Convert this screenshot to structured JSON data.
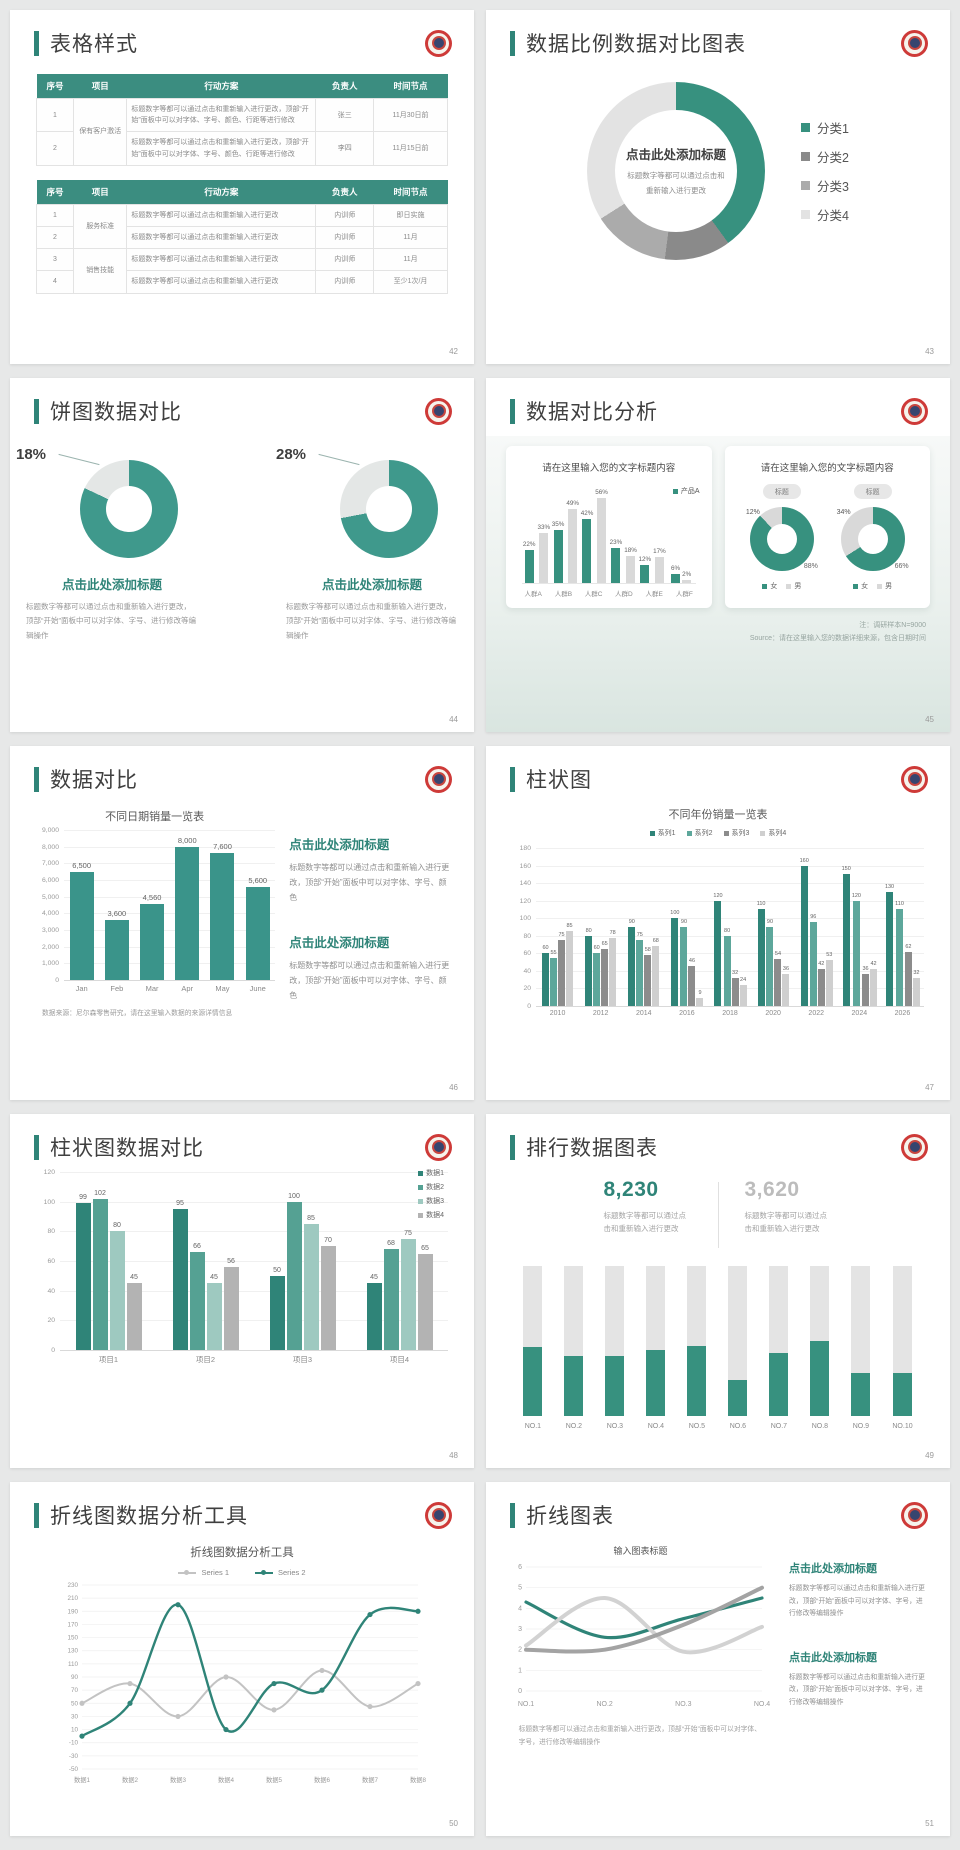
{
  "slides": [
    {
      "title": "表格样式",
      "page": "42",
      "tables": [
        {
          "headers": [
            "序号",
            "项目",
            "行动方案",
            "负责人",
            "时间节点"
          ],
          "col_widths": [
            "9%",
            "13%",
            "46%",
            "14%",
            "18%"
          ],
          "rows": [
            [
              {
                "t": "1"
              },
              {
                "t": "保有客户激活",
                "rs": 2
              },
              {
                "t": "标题数字等都可以通过点击和重新输入进行更改，顶部“开始”面板中可以对字体、字号、颜色、行距等进行修改"
              },
              {
                "t": "张三"
              },
              {
                "t": "11月30日前"
              }
            ],
            [
              {
                "t": "2"
              },
              null,
              {
                "t": "标题数字等都可以通过点击和重新输入进行更改，顶部“开始”面板中可以对字体、字号、颜色、行距等进行修改"
              },
              {
                "t": "李四"
              },
              {
                "t": "11月15日前"
              }
            ]
          ]
        },
        {
          "headers": [
            "序号",
            "项目",
            "行动方案",
            "负责人",
            "时间节点"
          ],
          "col_widths": [
            "9%",
            "13%",
            "46%",
            "14%",
            "18%"
          ],
          "rows": [
            [
              {
                "t": "1"
              },
              {
                "t": "服务标准",
                "rs": 2
              },
              {
                "t": "标题数字等都可以通过点击和重新输入进行更改"
              },
              {
                "t": "内训师"
              },
              {
                "t": "即日实施"
              }
            ],
            [
              {
                "t": "2"
              },
              null,
              {
                "t": "标题数字等都可以通过点击和重新输入进行更改"
              },
              {
                "t": "内训师"
              },
              {
                "t": "11月"
              }
            ],
            [
              {
                "t": "3"
              },
              {
                "t": "销售技能",
                "rs": 2
              },
              {
                "t": "标题数字等都可以通过点击和重新输入进行更改"
              },
              {
                "t": "内训师"
              },
              {
                "t": "11月"
              }
            ],
            [
              {
                "t": "4"
              },
              null,
              {
                "t": "标题数字等都可以通过点击和重新输入进行更改"
              },
              {
                "t": "内训师"
              },
              {
                "t": "至少1次/月"
              }
            ]
          ]
        }
      ]
    },
    {
      "title": "数据比例数据对比图表",
      "page": "43",
      "chart_data": {
        "type": "pie",
        "center_title": "点击此处添加标题",
        "center_text": "标题数字等都可以通过点击和重新输入进行更改",
        "segments": [
          {
            "label": "分类1",
            "value": 40,
            "color": "#37917f"
          },
          {
            "label": "分类2",
            "value": 12,
            "color": "#8a8a8a"
          },
          {
            "label": "分类3",
            "value": 14,
            "color": "#ababab"
          },
          {
            "label": "分类4",
            "value": 34,
            "color": "#e3e3e3"
          }
        ]
      }
    },
    {
      "title": "饼图数据对比",
      "page": "44",
      "main_color": "#3f998c",
      "rest_color": "#e4e7e6",
      "donuts": [
        {
          "percent_label": "18%",
          "value": 18,
          "title": "点击此处添加标题",
          "text": "标题数字等都可以通过点击和重新输入进行更改，顶部“开始”面板中可以对字体、字号、进行修改等编辑操作"
        },
        {
          "percent_label": "28%",
          "value": 28,
          "title": "点击此处添加标题",
          "text": "标题数字等都可以通过点击和重新输入进行更改，顶部“开始”面板中可以对字体、字号、进行修改等编辑操作"
        }
      ]
    },
    {
      "title": "数据对比分析",
      "page": "45",
      "note1": "注：调研样本N=9000",
      "note2": "Source：请在这里输入您的数据详细来源，包含日期时间",
      "card1": {
        "title": "请在这里输入您的文字标题内容",
        "chart_data": {
          "type": "bar",
          "ymax": 60,
          "categories": [
            "人群A",
            "人群B",
            "人群C",
            "人群D",
            "人群E",
            "人群F"
          ],
          "series": [
            {
              "name": "产品A",
              "color": "#37917f",
              "values": [
                22,
                35,
                42,
                23,
                12,
                6
              ],
              "labels": [
                "22%",
                "35%",
                "42%",
                "23%",
                "12%",
                "6%"
              ]
            },
            {
              "name": "",
              "color": "#d9d9d9",
              "values": [
                33,
                49,
                56,
                18,
                17,
                2
              ],
              "labels": [
                "33%",
                "49%",
                "56%",
                "18%",
                "17%",
                "2%"
              ]
            }
          ]
        }
      },
      "card2": {
        "title": "请在这里输入您的文字标题内容",
        "badge": "标题",
        "main_color": "#37917f",
        "rest_color": "#d9d9d9",
        "donuts": [
          {
            "main": 88,
            "main_label": "88%",
            "rest_label": "12%"
          },
          {
            "main": 66,
            "main_label": "66%",
            "rest_label": "34%"
          }
        ],
        "legend": [
          {
            "label": "女",
            "color": "#37917f"
          },
          {
            "label": "男",
            "color": "#d9d9d9"
          }
        ]
      }
    },
    {
      "title": "数据对比",
      "page": "46",
      "note": "数据来源：尼尔森零售研究，请在这里输入数据的来源详情信息",
      "blocks": [
        {
          "title": "点击此处添加标题",
          "text": "标题数字等都可以通过点击和重新输入进行更改，顶部“开始”面板中可以对字体、字号、颜色"
        },
        {
          "title": "点击此处添加标题",
          "text": "标题数字等都可以通过点击和重新输入进行更改，顶部“开始”面板中可以对字体、字号、颜色"
        }
      ],
      "chart_data": {
        "type": "bar",
        "title": "不同日期销量一览表",
        "ymax": 9000,
        "yticks": [
          "9,000",
          "8,000",
          "7,000",
          "6,000",
          "5,000",
          "4,000",
          "3,000",
          "2,000",
          "1,000",
          "0"
        ],
        "categories": [
          "Jan",
          "Feb",
          "Mar",
          "Apr",
          "May",
          "June"
        ],
        "series": [
          {
            "name": "",
            "color": "#3a948a",
            "values": [
              6500,
              3600,
              4560,
              8000,
              7600,
              5600
            ],
            "labels": [
              "6,500",
              "3,600",
              "4,560",
              "8,000",
              "7,600",
              "5,600"
            ]
          }
        ]
      }
    },
    {
      "title": "柱状图",
      "page": "47",
      "chart_data": {
        "type": "bar",
        "title": "不同年份销量一览表",
        "ymax": 180,
        "yticks": [
          "180",
          "160",
          "140",
          "120",
          "100",
          "80",
          "60",
          "40",
          "20",
          "0"
        ],
        "categories": [
          "2010",
          "2012",
          "2014",
          "2016",
          "2018",
          "2020",
          "2022",
          "2024",
          "2026"
        ],
        "series": [
          {
            "name": "系列1",
            "color": "#2f8478",
            "values": [
              60,
              80,
              90,
              100,
              120,
              110,
              160,
              150,
              130
            ]
          },
          {
            "name": "系列2",
            "color": "#5da79b",
            "values": [
              55,
              60,
              75,
              90,
              80,
              90,
              96,
              120,
              110
            ]
          },
          {
            "name": "系列3",
            "color": "#8c8c8c",
            "values": [
              75,
              65,
              58,
              46,
              32,
              54,
              42,
              36,
              62
            ]
          },
          {
            "name": "系列4",
            "color": "#cfcfcf",
            "values": [
              85,
              78,
              68,
              9,
              24,
              36,
              53,
              42,
              32
            ]
          }
        ]
      }
    },
    {
      "title": "柱状图数据对比",
      "page": "48",
      "chart_data": {
        "type": "bar",
        "ymax": 120,
        "yticks": [
          "120",
          "100",
          "80",
          "60",
          "40",
          "20",
          "0"
        ],
        "categories": [
          "项目1",
          "项目2",
          "项目3",
          "项目4"
        ],
        "series": [
          {
            "name": "数据1",
            "color": "#2f8478",
            "values": [
              99,
              95,
              50,
              45
            ]
          },
          {
            "name": "数据2",
            "color": "#55a193",
            "values": [
              102,
              66,
              100,
              68
            ]
          },
          {
            "name": "数据3",
            "color": "#9ec9c0",
            "values": [
              80,
              45,
              85,
              75
            ]
          },
          {
            "name": "数据4",
            "color": "#b3b3b3",
            "values": [
              45,
              56,
              70,
              65
            ]
          }
        ]
      }
    },
    {
      "title": "排行数据图表",
      "page": "49",
      "stat1": {
        "value": "8,230",
        "text": "标题数字等都可以通过点击和重新输入进行更改"
      },
      "stat2": {
        "value": "3,620",
        "text": "标题数字等都可以通过点击和重新输入进行更改"
      },
      "chart_data": {
        "type": "bar",
        "bar_color": "#37917f",
        "track_color": "#e4e4e4",
        "categories": [
          "NO.1",
          "NO.2",
          "NO.3",
          "NO.4",
          "NO.5",
          "NO.6",
          "NO.7",
          "NO.8",
          "NO.9",
          "NO.10"
        ],
        "values": [
          46,
          40,
          40,
          44,
          47,
          24,
          42,
          50,
          29,
          29
        ],
        "track_total": 100
      }
    },
    {
      "title": "折线图数据分析工具",
      "page": "50",
      "chart_data": {
        "type": "line",
        "title": "折线图数据分析工具",
        "ymin": -50,
        "ymax": 230,
        "yticks": [
          "230",
          "210",
          "190",
          "170",
          "150",
          "130",
          "110",
          "90",
          "70",
          "50",
          "30",
          "10",
          "-10",
          "-30",
          "-50"
        ],
        "categories": [
          "数据1",
          "数据2",
          "数据3",
          "数据4",
          "数据5",
          "数据6",
          "数据7",
          "数据8"
        ],
        "series": [
          {
            "name": "Series 1",
            "color": "#c3c3c3",
            "values": [
              50,
              80,
              30,
              90,
              40,
              100,
              45,
              80
            ],
            "markers": true,
            "width": 2
          },
          {
            "name": "Series 2",
            "color": "#2f8478",
            "values": [
              0,
              50,
              200,
              10,
              80,
              70,
              185,
              190
            ],
            "markers": true,
            "width": 2.4
          }
        ]
      }
    },
    {
      "title": "折线图表",
      "page": "51",
      "note": "标题数字等都可以通过点击和重新输入进行更改，顶部“开始”面板中可以对字体、字号，进行修改等编辑操作",
      "blocks": [
        {
          "title": "点击此处添加标题",
          "text": "标题数字等都可以通过点击和重新输入进行更改，顶部“开始”面板中可以对字体、字号，进行修改等编辑操作"
        },
        {
          "title": "点击此处添加标题",
          "text": "标题数字等都可以通过点击和重新输入进行更改，顶部“开始”面板中可以对字体、字号，进行修改等编辑操作"
        }
      ],
      "chart_data": {
        "type": "line",
        "title": "输入图表标题",
        "ymin": 0,
        "ymax": 6,
        "yticks": [
          "6",
          "5",
          "4",
          "3",
          "2",
          "1",
          "0"
        ],
        "categories": [
          "NO.1",
          "NO.2",
          "NO.3",
          "NO.4"
        ],
        "series": [
          {
            "name": "系列1",
            "color": "#2f8478",
            "values": [
              4.3,
              2.6,
              3.5,
              4.5
            ],
            "width": 3.2
          },
          {
            "name": "系列2",
            "color": "#d2d2d2",
            "values": [
              2.2,
              4.5,
              1.9,
              3.1
            ],
            "width": 4
          },
          {
            "name": "系列3",
            "color": "#a3a3a3",
            "values": [
              2.0,
              2.0,
              3.2,
              5.0
            ],
            "width": 4
          }
        ]
      }
    }
  ]
}
